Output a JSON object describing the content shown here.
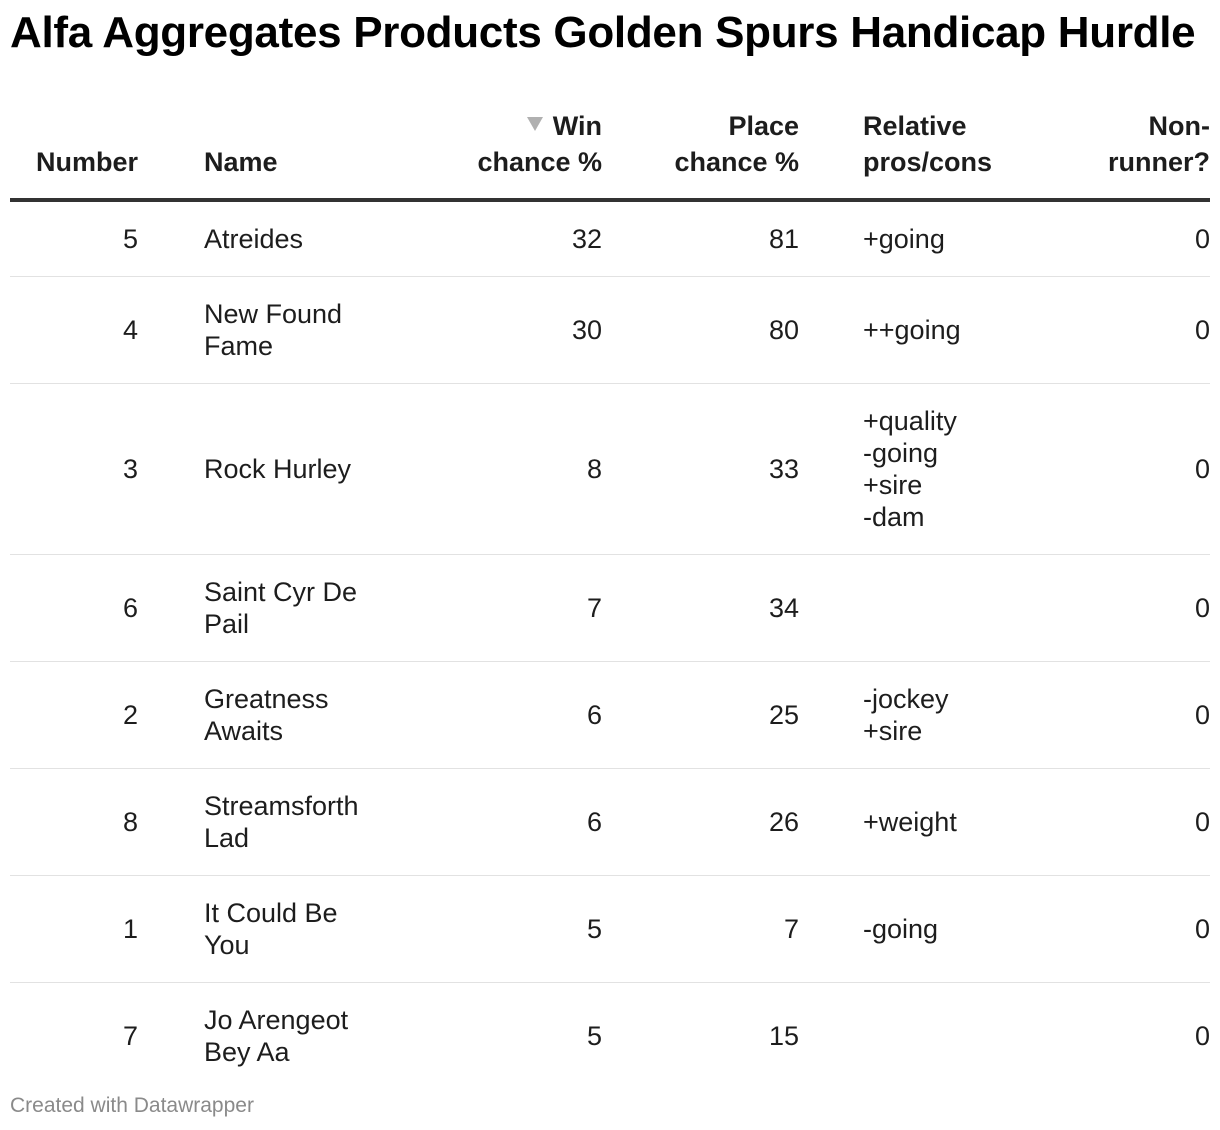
{
  "title": "Alfa Aggregates Products Golden Spurs Handicap Hurdle",
  "footer": "Created with Datawrapper",
  "sort": {
    "column": "Win chance %",
    "direction": "descending",
    "icon": "sort-descending-icon",
    "icon_color": "#b0b0b0"
  },
  "columns": [
    {
      "key": "number",
      "line1": "",
      "line2": "Number"
    },
    {
      "key": "name",
      "line1": "",
      "line2": "Name"
    },
    {
      "key": "win",
      "line1": "Win",
      "line2": "chance %"
    },
    {
      "key": "place",
      "line1": "Place",
      "line2": "chance %"
    },
    {
      "key": "pros",
      "line1": "Relative",
      "line2": "pros/cons"
    },
    {
      "key": "nonrunner",
      "line1": "Non-",
      "line2": "runner?"
    }
  ],
  "rows": [
    {
      "number": "5",
      "name": "Atreides",
      "win": "32",
      "place": "81",
      "pros": "+going",
      "nonrunner": "0"
    },
    {
      "number": "4",
      "name": "New Found Fame",
      "win": "30",
      "place": "80",
      "pros": "++going",
      "nonrunner": "0"
    },
    {
      "number": "3",
      "name": "Rock Hurley",
      "win": "8",
      "place": "33",
      "pros": "+quality\n-going\n+sire\n-dam",
      "nonrunner": "0"
    },
    {
      "number": "6",
      "name": "Saint Cyr De Pail",
      "win": "7",
      "place": "34",
      "pros": "",
      "nonrunner": "0"
    },
    {
      "number": "2",
      "name": "Greatness Awaits",
      "win": "6",
      "place": "25",
      "pros": "-jockey\n+sire",
      "nonrunner": "0"
    },
    {
      "number": "8",
      "name": "Streamsforth Lad",
      "win": "6",
      "place": "26",
      "pros": "+weight",
      "nonrunner": "0"
    },
    {
      "number": "1",
      "name": "It Could Be You",
      "win": "5",
      "place": "7",
      "pros": "-going",
      "nonrunner": "0"
    },
    {
      "number": "7",
      "name": "Jo Arengeot Bey Aa",
      "win": "5",
      "place": "15",
      "pros": "",
      "nonrunner": "0"
    }
  ],
  "chart_data": {
    "type": "table",
    "title": "Alfa Aggregates Products Golden Spurs Handicap Hurdle",
    "headers": [
      "Number",
      "Name",
      "Win chance %",
      "Place chance %",
      "Relative pros/cons",
      "Non-runner?"
    ],
    "rows": [
      [
        5,
        "Atreides",
        32,
        81,
        "+going",
        0
      ],
      [
        4,
        "New Found Fame",
        30,
        80,
        "++going",
        0
      ],
      [
        3,
        "Rock Hurley",
        8,
        33,
        "+quality -going +sire -dam",
        0
      ],
      [
        6,
        "Saint Cyr De Pail",
        7,
        34,
        "",
        0
      ],
      [
        2,
        "Greatness Awaits",
        6,
        25,
        "-jockey +sire",
        0
      ],
      [
        8,
        "Streamsforth Lad",
        6,
        26,
        "+weight",
        0
      ],
      [
        1,
        "It Could Be You",
        5,
        7,
        "-going",
        0
      ],
      [
        7,
        "Jo Arengeot Bey Aa",
        5,
        15,
        "",
        0
      ]
    ]
  }
}
